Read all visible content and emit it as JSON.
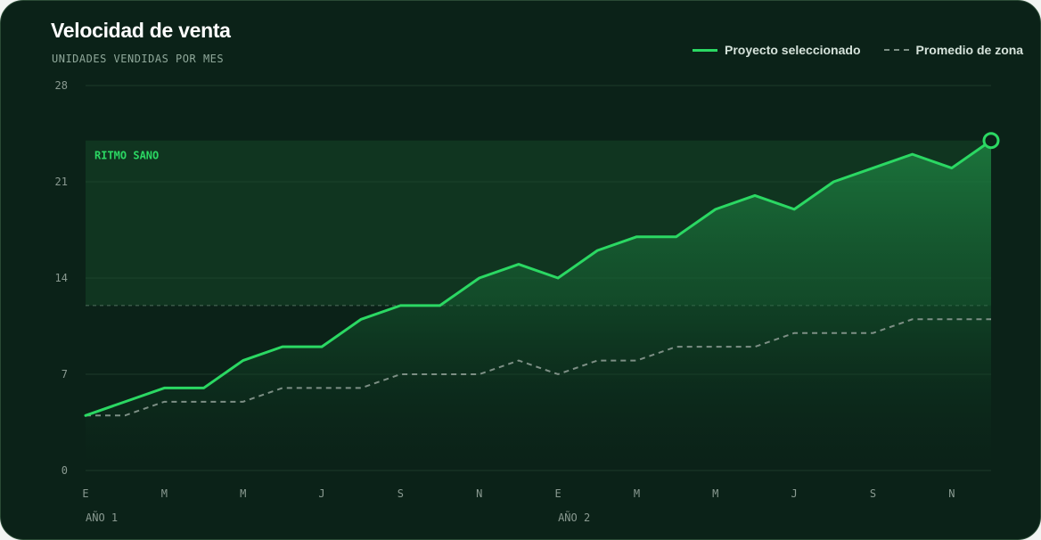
{
  "title": "Velocidad de venta",
  "subtitle": "UNIDADES VENDIDAS POR MES",
  "legend": {
    "selected": "Proyecto seleccionado",
    "average": "Promedio de zona"
  },
  "colors": {
    "accent": "#2bd863",
    "average": "#7d8f85",
    "background": "#0b2218"
  },
  "chart_data": {
    "type": "line",
    "title": "Velocidad de venta",
    "subtitle": "UNIDADES VENDIDAS POR MES",
    "ylim": [
      0,
      28
    ],
    "yticks": [
      0,
      7,
      14,
      21,
      28
    ],
    "x_tick_labels": [
      "E",
      "M",
      "M",
      "J",
      "S",
      "N",
      "E",
      "M",
      "M",
      "J",
      "S",
      "N"
    ],
    "year_labels": [
      "AÑO 1",
      "AÑO 2"
    ],
    "grid": true,
    "legend_position": "top-right",
    "band": {
      "label": "RITMO SANO",
      "from": 12,
      "to": 24
    },
    "series": [
      {
        "name": "Proyecto seleccionado",
        "style": "solid",
        "values": [
          4,
          5,
          6,
          6,
          8,
          9,
          9,
          11,
          12,
          12,
          14,
          15,
          14,
          16,
          17,
          17,
          19,
          20,
          19,
          21,
          22,
          23,
          22,
          24
        ]
      },
      {
        "name": "Promedio de zona",
        "style": "dashed",
        "values": [
          4,
          4,
          5,
          5,
          5,
          6,
          6,
          6,
          7,
          7,
          7,
          8,
          7,
          8,
          8,
          9,
          9,
          9,
          10,
          10,
          10,
          11,
          11,
          11
        ]
      }
    ]
  }
}
